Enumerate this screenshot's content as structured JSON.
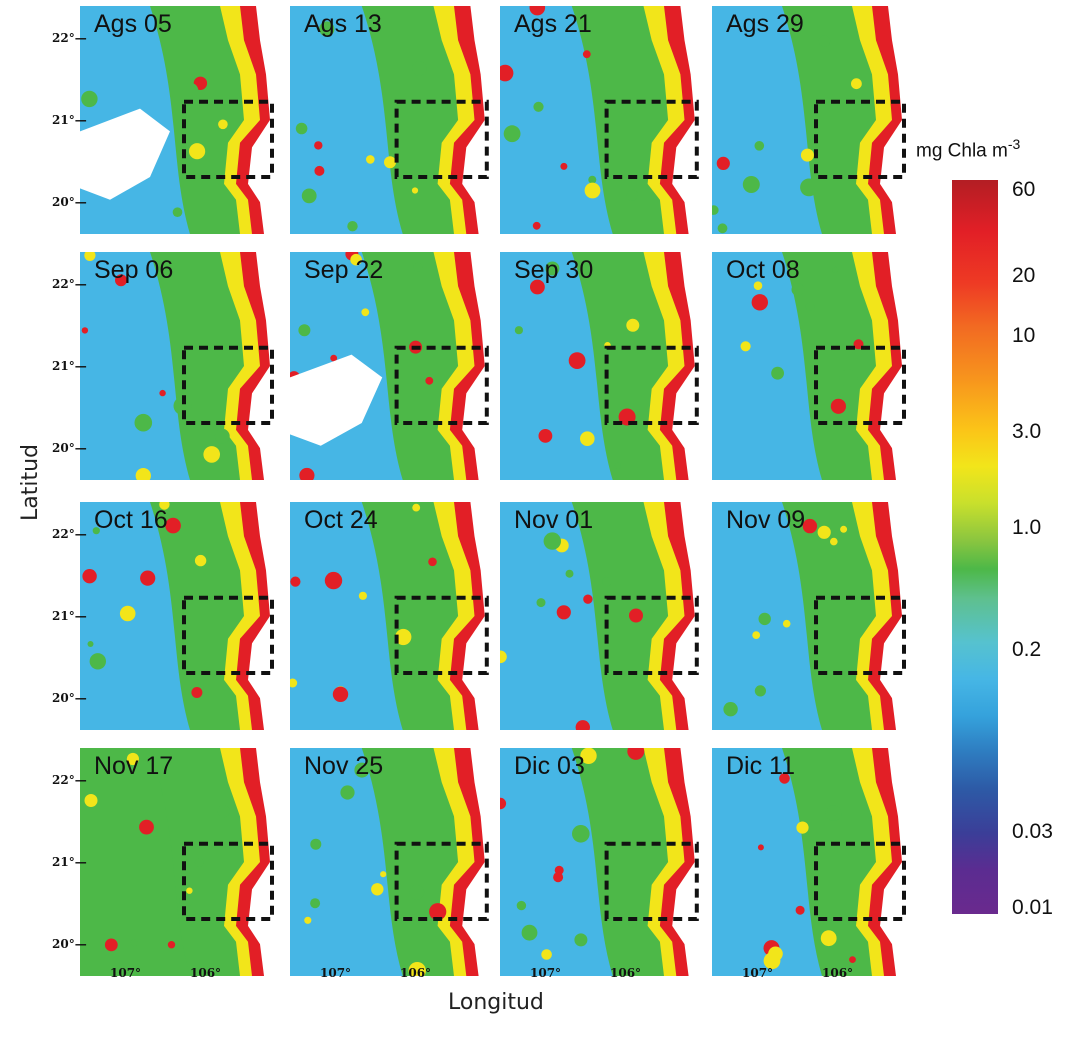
{
  "axes": {
    "ylabel": "Latitud",
    "xlabel": "Longitud"
  },
  "panels": [
    {
      "label": "Ags 05"
    },
    {
      "label": "Ags 13"
    },
    {
      "label": "Ags 21"
    },
    {
      "label": "Ags 29"
    },
    {
      "label": "Sep 06"
    },
    {
      "label": "Sep 22"
    },
    {
      "label": "Sep 30"
    },
    {
      "label": "Oct 08"
    },
    {
      "label": "Oct 16"
    },
    {
      "label": "Oct 24"
    },
    {
      "label": "Nov 01"
    },
    {
      "label": "Nov 09"
    },
    {
      "label": "Nov 17"
    },
    {
      "label": "Nov 25"
    },
    {
      "label": "Dic 03"
    },
    {
      "label": "Dic 11"
    }
  ],
  "lat_ticks": [
    "22°",
    "21°",
    "20°"
  ],
  "lon_ticks": [
    "107°",
    "106°"
  ],
  "colorbar": {
    "title": "mg Chla m",
    "title_exp": "-3",
    "ticks": [
      "60",
      "20",
      "10",
      "3.0",
      "1.0",
      "0.2",
      "0.03",
      "0.01"
    ]
  },
  "chart_data": {
    "type": "heatmap",
    "description_units": "chlorophyll-a concentration (mg Chla m^-3), log color scale",
    "xlabel": "Longitud",
    "ylabel": "Latitud",
    "x_ticks": [
      "107°",
      "106°"
    ],
    "y_ticks": [
      "22°",
      "21°",
      "20°"
    ],
    "series_labels": [
      "Ags 05",
      "Ags 13",
      "Ags 21",
      "Ags 29",
      "Sep 06",
      "Sep 22",
      "Sep 30",
      "Oct 08",
      "Oct 16",
      "Oct 24",
      "Nov 01",
      "Nov 09",
      "Nov 17",
      "Nov 25",
      "Dic 03",
      "Dic 11"
    ],
    "colorbar_range": [
      0.01,
      60
    ],
    "colorbar_ticks": [
      60,
      20,
      10,
      3.0,
      1.0,
      0.2,
      0.03,
      0.01
    ],
    "colors": {
      "low": "#5b2c91",
      "mid_low": "#46b6e5",
      "mid": "#4db848",
      "mid_high": "#f2e51a",
      "high": "#e21f26",
      "max": "#b31e24"
    },
    "regime": [
      "low",
      "low",
      "low",
      "mid",
      "mid",
      "mid",
      "mid",
      "mid",
      "mid",
      "mid",
      "mid",
      "mid",
      "high",
      "mid",
      "mid",
      "mid"
    ],
    "nodata_cells": [
      true,
      false,
      false,
      false,
      false,
      true,
      false,
      false,
      false,
      false,
      false,
      false,
      false,
      false,
      false,
      false
    ]
  }
}
